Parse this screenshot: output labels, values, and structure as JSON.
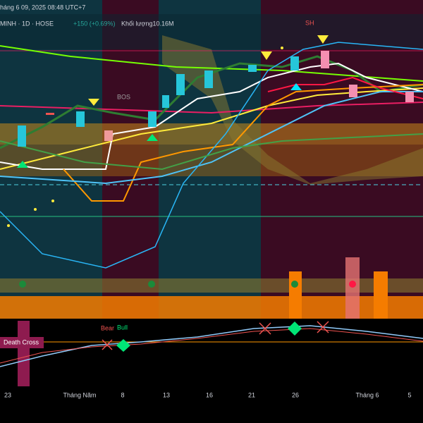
{
  "header": {
    "date": "háng 6 09, 2025 08:48 UTC+7",
    "symbol": "MINH · 1D · HOSE",
    "change": "+150 (+0.69%)",
    "volume": "Khối lượng10.16M"
  },
  "labels": {
    "sh": "SH",
    "bos": "BOS",
    "bear": "Bear",
    "bull": "Bull",
    "cross": "Death Cross"
  },
  "x_axis": [
    "23",
    "Tháng Năm",
    "8",
    "13",
    "16",
    "21",
    "26",
    "Tháng 6",
    "5"
  ]
}
